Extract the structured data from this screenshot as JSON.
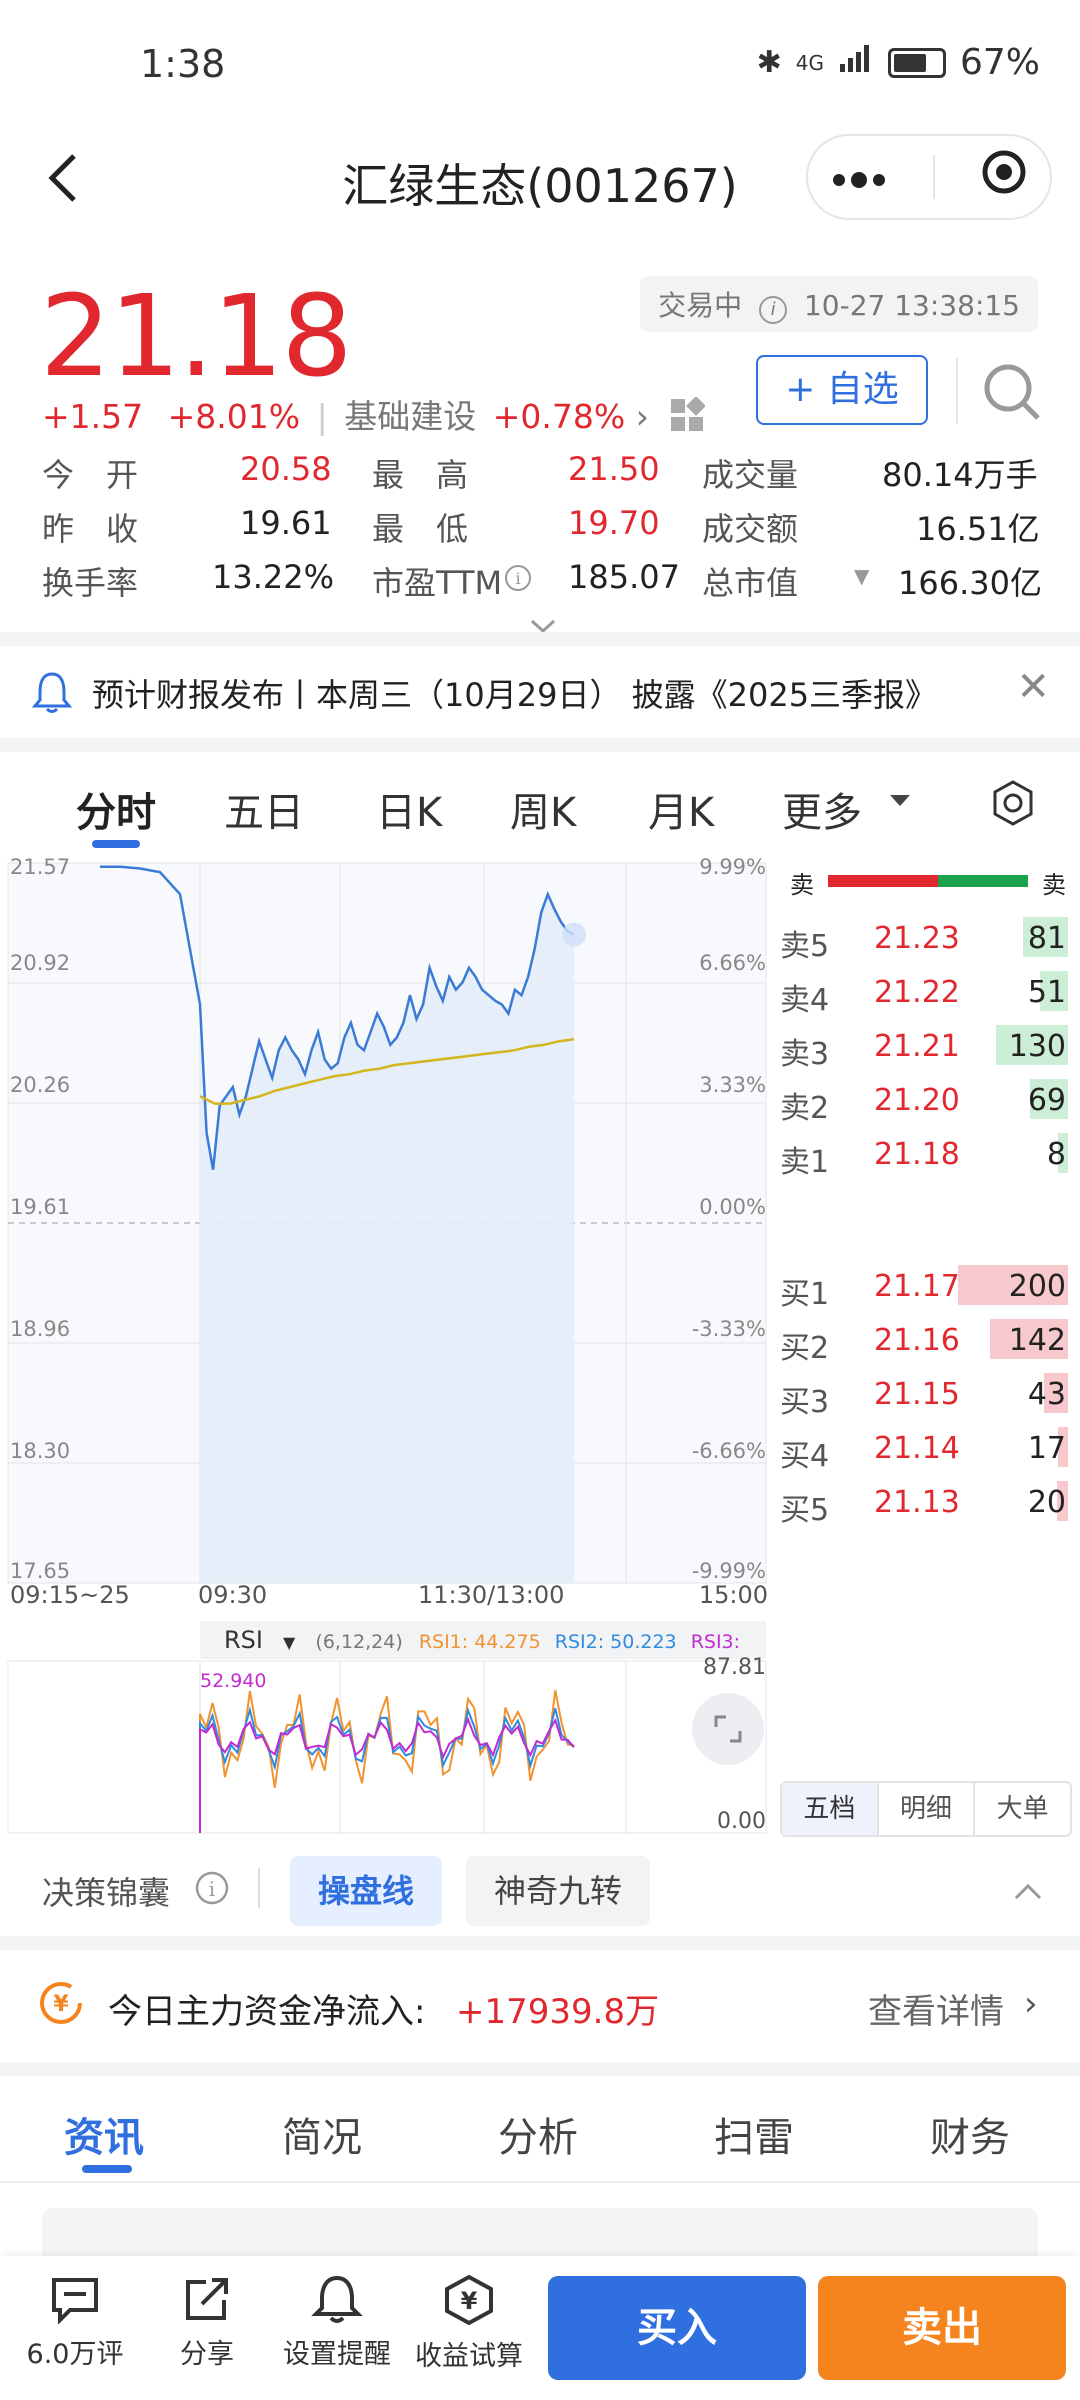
{
  "status_bar": {
    "time": "1:38",
    "battery": "67%",
    "network": "4G"
  },
  "nav": {
    "title": "汇绿生态(001267)",
    "more_icon": "more-dots-icon",
    "target_icon": "target-icon"
  },
  "quote": {
    "price": "21.18",
    "trade_status": "交易中",
    "datetime": "10-27 13:38:15",
    "change": "+1.57",
    "change_pct": "+8.01%",
    "sector": "基础建设",
    "sector_pct": "+0.78%",
    "follow_label": "+ 自选",
    "stats": [
      [
        {
          "label": "今　开",
          "value": "20.58",
          "color": "red"
        },
        {
          "label": "最　高",
          "value": "21.50",
          "color": "red"
        },
        {
          "label": "成交量",
          "value": "80.14万手",
          "color": "dark"
        }
      ],
      [
        {
          "label": "昨　收",
          "value": "19.61",
          "color": "dark"
        },
        {
          "label": "最　低",
          "value": "19.70",
          "color": "red"
        },
        {
          "label": "成交额",
          "value": "16.51亿",
          "color": "dark"
        }
      ],
      [
        {
          "label": "换手率",
          "value": "13.22%",
          "color": "dark"
        },
        {
          "label": "市盈TTM",
          "value": "185.07",
          "color": "dark"
        },
        {
          "label": "总市值",
          "value": "166.30亿",
          "color": "dark"
        }
      ]
    ]
  },
  "notice": {
    "text": "预计财报发布丨本周三（10月29日） 披露《2025三季报》"
  },
  "chart_tabs": [
    "分时",
    "五日",
    "日K",
    "周K",
    "月K",
    "更多"
  ],
  "chart_data": {
    "type": "line",
    "y_left_ticks": [
      "21.57",
      "20.92",
      "20.26",
      "19.61",
      "18.96",
      "18.30",
      "17.65"
    ],
    "y_right_ticks": [
      "9.99%",
      "6.66%",
      "3.33%",
      "0.00%",
      "-3.33%",
      "-6.66%",
      "-9.99%"
    ],
    "x_ticks": [
      "09:15~25",
      "09:30",
      "11:30/13:00",
      "15:00"
    ],
    "ylim": [
      17.65,
      21.57
    ],
    "base": 19.61,
    "series": [
      {
        "color": "#3a7bd5",
        "values": [
          21.55,
          21.55,
          21.54,
          21.52,
          21.4,
          20.8,
          20.1,
          19.9,
          20.25,
          20.3,
          20.35,
          20.2,
          20.3,
          20.45,
          20.6,
          20.5,
          20.4,
          20.55,
          20.62,
          20.55,
          20.5,
          20.42,
          20.55,
          20.65,
          20.5,
          20.45,
          20.48,
          20.62,
          20.7,
          20.58,
          20.55,
          20.65,
          20.75,
          20.68,
          20.58,
          20.62,
          20.7,
          20.85,
          20.72,
          20.8,
          21.0,
          20.9,
          20.82,
          20.95,
          20.88,
          20.92,
          21.0,
          20.95,
          20.88,
          20.85,
          20.82,
          20.8,
          20.75,
          20.88,
          20.85,
          20.95,
          21.1,
          21.3,
          21.4,
          21.32,
          21.25,
          21.2,
          21.18
        ]
      },
      {
        "color": "#d4b51c",
        "values": [
          20.3,
          20.26,
          20.26,
          20.28,
          20.3,
          20.33,
          20.35,
          20.37,
          20.39,
          20.41,
          20.42,
          20.44,
          20.45,
          20.47,
          20.48,
          20.49,
          20.5,
          20.51,
          20.52,
          20.53,
          20.54,
          20.55,
          20.57,
          20.58,
          20.6,
          20.61
        ]
      }
    ],
    "rsi": {
      "label": "RSI",
      "params": "(6,12,24)",
      "rsi1": "RSI1: 44.275",
      "rsi2": "RSI2: 50.223",
      "rsi3": "RSI3: 52.940",
      "top": "87.81",
      "bottom": "0.00"
    }
  },
  "order_book": {
    "header_left": "卖",
    "header_right": "卖",
    "asks": [
      {
        "label": "卖5",
        "price": "21.23",
        "vol": "81"
      },
      {
        "label": "卖4",
        "price": "21.22",
        "vol": "51"
      },
      {
        "label": "卖3",
        "price": "21.21",
        "vol": "130"
      },
      {
        "label": "卖2",
        "price": "21.20",
        "vol": "69"
      },
      {
        "label": "卖1",
        "price": "21.18",
        "vol": "8"
      }
    ],
    "bids": [
      {
        "label": "买1",
        "price": "21.17",
        "vol": "200"
      },
      {
        "label": "买2",
        "price": "21.16",
        "vol": "142"
      },
      {
        "label": "买3",
        "price": "21.15",
        "vol": "43"
      },
      {
        "label": "买4",
        "price": "21.14",
        "vol": "17"
      },
      {
        "label": "买5",
        "price": "21.13",
        "vol": "20"
      }
    ],
    "tabs": [
      "五档",
      "明细",
      "大单"
    ]
  },
  "tools": {
    "label": "决策锦囊",
    "chip1": "操盘线",
    "chip2": "神奇九转"
  },
  "money_flow": {
    "label": "今日主力资金净流入:",
    "value": "+17939.8万",
    "detail": "查看详情"
  },
  "info_tabs": [
    "资讯",
    "简况",
    "分析",
    "扫雷",
    "财务"
  ],
  "bottom_bar": {
    "comments": "6.0万评",
    "share": "分享",
    "alert": "设置提醒",
    "calc": "收益试算",
    "buy": "买入",
    "sell": "卖出"
  }
}
